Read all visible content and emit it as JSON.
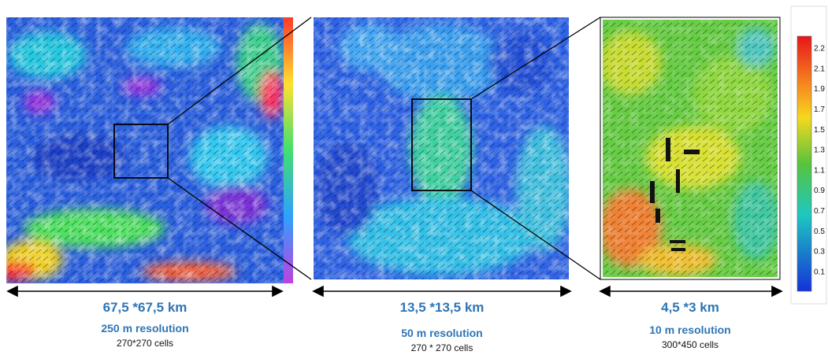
{
  "panels": [
    {
      "extent": "67,5 *67,5 km",
      "resolution": "250 m resolution",
      "cells": "270*270 cells"
    },
    {
      "extent": "13,5 *13,5 km",
      "resolution": "50 m resolution",
      "cells": "270 * 270 cells"
    },
    {
      "extent": "4,5 *3 km",
      "resolution": "10 m resolution",
      "cells": "300*450 cells"
    }
  ],
  "colorbar": {
    "labels": [
      "2.2",
      "2.1",
      "1.9",
      "1.7",
      "1.5",
      "1.3",
      "1.1",
      "0.9",
      "0.7",
      "0.5",
      "0.3",
      "0.1"
    ]
  }
}
